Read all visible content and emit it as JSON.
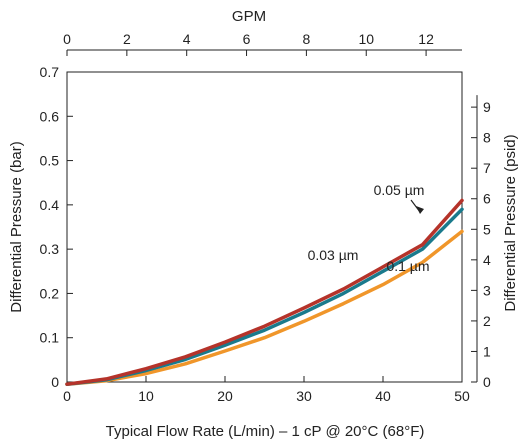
{
  "chart_data": {
    "type": "line",
    "title": "",
    "xlabel": "Typical Flow Rate (L/min) – 1 cP @ 20°C (68°F)",
    "ylabel": "Differential Pressure (bar)",
    "y2label": "Differential Pressure (psid)",
    "x2label": "GPM",
    "xlim": [
      0,
      50
    ],
    "ylim": [
      0,
      0.7
    ],
    "x2lim": [
      0,
      13.2
    ],
    "y2lim": [
      0,
      10.15
    ],
    "x_ticks": [
      "0",
      "10",
      "20",
      "30",
      "40",
      "50"
    ],
    "y_ticks": [
      "0",
      "0.1",
      "0.2",
      "0.3",
      "0.4",
      "0.5",
      "0.6",
      "0.7"
    ],
    "x2_ticks": [
      "0",
      "2",
      "4",
      "6",
      "8",
      "10",
      "12"
    ],
    "y2_ticks": [
      "0",
      "1",
      "2",
      "3",
      "4",
      "5",
      "6",
      "7",
      "8",
      "9"
    ],
    "grid": false,
    "series": [
      {
        "name": "0.05 µm",
        "color": "#b5332a",
        "x": [
          0,
          5,
          10,
          15,
          20,
          25,
          30,
          35,
          40,
          45,
          50
        ],
        "y": [
          -0.005,
          0.007,
          0.03,
          0.057,
          0.09,
          0.126,
          0.167,
          0.21,
          0.26,
          0.31,
          0.41
        ]
      },
      {
        "name": "0.03 µm",
        "color": "#1a7a8c",
        "x": [
          0,
          5,
          10,
          15,
          20,
          25,
          30,
          35,
          40,
          45,
          50
        ],
        "y": [
          -0.005,
          0.005,
          0.026,
          0.051,
          0.083,
          0.117,
          0.157,
          0.2,
          0.25,
          0.3,
          0.39
        ]
      },
      {
        "name": "0.1 µm",
        "color": "#f0962a",
        "x": [
          0,
          5,
          10,
          15,
          20,
          25,
          30,
          35,
          40,
          45,
          50
        ],
        "y": [
          -0.005,
          0.003,
          0.019,
          0.041,
          0.07,
          0.1,
          0.137,
          0.177,
          0.22,
          0.27,
          0.34
        ]
      }
    ]
  }
}
